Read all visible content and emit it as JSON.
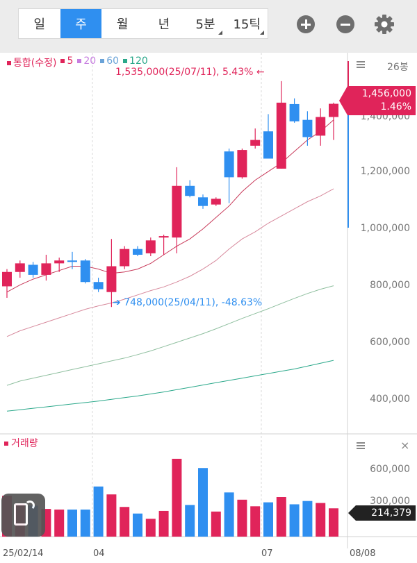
{
  "toolbar": {
    "periods": [
      "일",
      "주",
      "월",
      "년",
      "5분",
      "15틱"
    ],
    "active_period": "주",
    "plus_icon": "zoom-in-icon",
    "minus_icon": "zoom-out-icon",
    "settings_icon": "gear-icon"
  },
  "legend": {
    "main": "통합(수정)",
    "ma": [
      {
        "label": "5",
        "color": "#e0245a"
      },
      {
        "label": "20",
        "color": "#c77ee0"
      },
      {
        "label": "60",
        "color": "#6aa3d8"
      },
      {
        "label": "120",
        "color": "#2aa88a"
      }
    ]
  },
  "price_panel": {
    "unit_label": "26봉",
    "y_ticks": [
      "1,400,000",
      "1,200,000",
      "1,000,000",
      "800,000",
      "600,000",
      "400,000"
    ],
    "max_annotation": "1,535,000(25/07/11), 5.43% ←",
    "min_annotation": "➔ 748,000(25/04/11), -48.63%",
    "current_price": "1,456,000",
    "current_change": "1.46%"
  },
  "volume_panel": {
    "title": "거래량",
    "y_ticks": [
      "600,000",
      "300,000"
    ],
    "current_volume": "214,379"
  },
  "x_axis": [
    "25/02/14",
    "04",
    "07",
    "08/08"
  ],
  "colors": {
    "up": "#e0245a",
    "down": "#2f8ff0"
  },
  "chart_data": {
    "type": "candlestick",
    "ylim": [
      330000,
      1600000
    ],
    "candles": [
      {
        "o": 820000,
        "h": 880000,
        "l": 780000,
        "c": 870000
      },
      {
        "o": 870000,
        "h": 910000,
        "l": 850000,
        "c": 900000
      },
      {
        "o": 895000,
        "h": 905000,
        "l": 850000,
        "c": 860000
      },
      {
        "o": 860000,
        "h": 930000,
        "l": 840000,
        "c": 900000
      },
      {
        "o": 900000,
        "h": 920000,
        "l": 870000,
        "c": 910000
      },
      {
        "o": 910000,
        "h": 940000,
        "l": 880000,
        "c": 905000
      },
      {
        "o": 910000,
        "h": 915000,
        "l": 830000,
        "c": 835000
      },
      {
        "o": 835000,
        "h": 850000,
        "l": 800000,
        "c": 810000
      },
      {
        "o": 800000,
        "h": 985000,
        "l": 748000,
        "c": 890000
      },
      {
        "o": 890000,
        "h": 960000,
        "l": 880000,
        "c": 950000
      },
      {
        "o": 950000,
        "h": 960000,
        "l": 925000,
        "c": 930000
      },
      {
        "o": 935000,
        "h": 990000,
        "l": 925000,
        "c": 980000
      },
      {
        "o": 990000,
        "h": 1000000,
        "l": 930000,
        "c": 995000
      },
      {
        "o": 990000,
        "h": 1235000,
        "l": 935000,
        "c": 1170000
      },
      {
        "o": 1170000,
        "h": 1190000,
        "l": 1130000,
        "c": 1135000
      },
      {
        "o": 1130000,
        "h": 1140000,
        "l": 1090000,
        "c": 1100000
      },
      {
        "o": 1105000,
        "h": 1130000,
        "l": 1100000,
        "c": 1125000
      },
      {
        "o": 1290000,
        "h": 1300000,
        "l": 1110000,
        "c": 1200000
      },
      {
        "o": 1200000,
        "h": 1300000,
        "l": 1195000,
        "c": 1295000
      },
      {
        "o": 1310000,
        "h": 1370000,
        "l": 1300000,
        "c": 1330000
      },
      {
        "o": 1360000,
        "h": 1420000,
        "l": 1270000,
        "c": 1265000
      },
      {
        "o": 1230000,
        "h": 1535000,
        "l": 1230000,
        "c": 1460000
      },
      {
        "o": 1455000,
        "h": 1475000,
        "l": 1390000,
        "c": 1395000
      },
      {
        "o": 1400000,
        "h": 1430000,
        "l": 1310000,
        "c": 1340000
      },
      {
        "o": 1345000,
        "h": 1440000,
        "l": 1310000,
        "c": 1410000
      },
      {
        "o": 1410000,
        "h": 1460000,
        "l": 1330000,
        "c": 1456000
      }
    ],
    "ma5": [
      800000,
      825000,
      845000,
      860000,
      875000,
      890000,
      890000,
      880000,
      865000,
      870000,
      880000,
      900000,
      930000,
      960000,
      985000,
      1020000,
      1060000,
      1100000,
      1150000,
      1190000,
      1220000,
      1250000,
      1290000,
      1330000,
      1360000,
      1400000
    ],
    "ma20": [
      645000,
      665000,
      680000,
      695000,
      710000,
      725000,
      740000,
      752000,
      762000,
      775000,
      790000,
      805000,
      818000,
      835000,
      855000,
      880000,
      910000,
      950000,
      985000,
      1010000,
      1040000,
      1065000,
      1090000,
      1115000,
      1135000,
      1160000
    ],
    "ma60": [
      475000,
      490000,
      500000,
      510000,
      520000,
      530000,
      540000,
      550000,
      560000,
      570000,
      582000,
      595000,
      610000,
      625000,
      640000,
      655000,
      672000,
      690000,
      708000,
      725000,
      742000,
      760000,
      778000,
      795000,
      810000,
      822000
    ],
    "ma120": [
      385000,
      390000,
      395000,
      400000,
      405000,
      410000,
      415000,
      420000,
      426000,
      432000,
      438000,
      445000,
      452000,
      460000,
      468000,
      476000,
      484000,
      492000,
      500000,
      508000,
      516000,
      524000,
      532000,
      542000,
      552000,
      562000
    ],
    "volume": [
      310000,
      250000,
      235000,
      210000,
      205000,
      205000,
      205000,
      380000,
      320000,
      225000,
      175000,
      135000,
      195000,
      590000,
      240000,
      520000,
      190000,
      335000,
      280000,
      230000,
      260000,
      300000,
      245000,
      270000,
      255000,
      214379
    ],
    "vol_ylim": [
      0,
      700000
    ]
  }
}
